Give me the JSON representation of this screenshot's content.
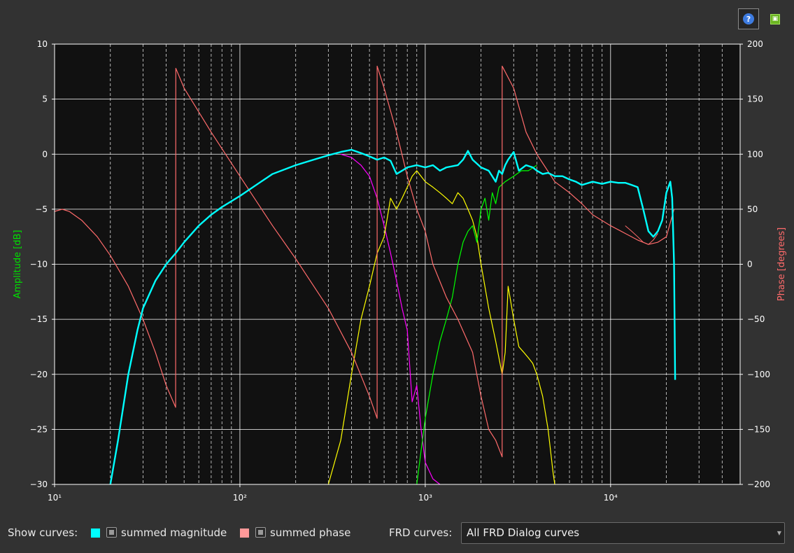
{
  "toolbar": {
    "help_icon": "help-icon",
    "export_icon": "export-icon",
    "help_glyph": "?",
    "export_glyph": "▣"
  },
  "controls": {
    "show_curves_label": "Show curves:",
    "magnitude_label": "summed magnitude",
    "magnitude_color": "#00ffff",
    "phase_label": "summed phase",
    "phase_color": "#ff9999",
    "frd_label": "FRD curves:",
    "frd_selected": "All FRD Dialog curves"
  },
  "chart_data": {
    "type": "line",
    "xscale": "log",
    "xlim": [
      10,
      50000
    ],
    "xticks": [
      10,
      100,
      1000,
      10000
    ],
    "xtick_labels": [
      "10¹",
      "10²",
      "10³",
      "10⁴"
    ],
    "ylabel": "Amplitude [dB]",
    "ylim": [
      -30,
      10
    ],
    "yticks": [
      10,
      5,
      0,
      -5,
      -10,
      -15,
      -20,
      -25,
      -30
    ],
    "ytick_labels": [
      "10",
      "5",
      "0",
      "−5",
      "−10",
      "−15",
      "−20",
      "−25",
      "−30"
    ],
    "y2label": "Phase [degrees]",
    "y2lim": [
      -200,
      200
    ],
    "y2ticks": [
      200,
      150,
      100,
      50,
      0,
      -50,
      -100,
      -150,
      -200
    ],
    "y2tick_labels": [
      "200",
      "150",
      "100",
      "50",
      "0",
      "−50",
      "−100",
      "−150",
      "−200"
    ],
    "grid": true,
    "colors": {
      "background": "#111111",
      "ylabel": "#00e000",
      "y2label": "#ff6b6b"
    },
    "series": [
      {
        "axis": "left",
        "color": "#ff00ff",
        "width": 1.2,
        "x": [
          350,
          400,
          450,
          500,
          550,
          600,
          650,
          700,
          750,
          800,
          850,
          900,
          950,
          1000,
          1100,
          1200
        ],
        "y": [
          0,
          -0.3,
          -1,
          -2,
          -4,
          -6.5,
          -9,
          -11.5,
          -14,
          -16,
          -22.5,
          -21,
          -25,
          -28,
          -29.5,
          -30
        ]
      },
      {
        "axis": "left",
        "color": "#ffff00",
        "width": 1.2,
        "x": [
          300,
          350,
          400,
          450,
          500,
          550,
          600,
          650,
          700,
          750,
          800,
          850,
          900,
          1000,
          1100,
          1200,
          1300,
          1400,
          1500,
          1600,
          1700,
          1800,
          1900,
          2000,
          2200,
          2400,
          2600,
          2700,
          2800,
          2900,
          3000,
          3200,
          3400,
          3600,
          3800,
          4000,
          4300,
          4600,
          4900,
          5000
        ],
        "y": [
          -30,
          -26,
          -20,
          -15,
          -12,
          -9,
          -7.5,
          -4,
          -5,
          -4,
          -3,
          -2,
          -1.5,
          -2.5,
          -3,
          -3.5,
          -4,
          -4.5,
          -3.5,
          -4,
          -5,
          -6,
          -7.5,
          -10,
          -14,
          -17,
          -20,
          -18,
          -12,
          -13.5,
          -15,
          -17.5,
          -18,
          -18.5,
          -19,
          -20,
          -22,
          -25,
          -29,
          -30
        ]
      },
      {
        "axis": "left",
        "color": "#00ff00",
        "width": 1.2,
        "x": [
          900,
          1000,
          1100,
          1200,
          1300,
          1400,
          1500,
          1600,
          1700,
          1800,
          1900,
          2000,
          2100,
          2200,
          2300,
          2400,
          2500,
          2700,
          3000,
          3300,
          3600,
          4000
        ],
        "y": [
          -30,
          -24,
          -20,
          -17,
          -15,
          -13,
          -10,
          -8,
          -7,
          -6.5,
          -8,
          -5,
          -4,
          -6,
          -3.5,
          -4.5,
          -3,
          -2.5,
          -2,
          -1.5,
          -1.5,
          -1
        ]
      },
      {
        "axis": "right",
        "color": "#ff6b6b",
        "width": 1.2,
        "x": [
          10,
          11,
          12,
          14,
          17,
          20,
          25,
          30,
          35,
          40,
          45,
          45.1,
          50,
          70,
          100,
          150,
          200,
          300,
          400,
          500,
          550,
          550.1,
          600,
          700,
          800,
          900,
          1000,
          1100,
          1300,
          1500,
          1800,
          2000,
          2200,
          2400,
          2600,
          2600.1,
          3000,
          3500,
          4000,
          5000,
          6000,
          7000,
          8000,
          10000,
          12000,
          14000,
          16000,
          18000,
          20000,
          22000
        ],
        "y": [
          48,
          50,
          48,
          40,
          25,
          8,
          -20,
          -50,
          -80,
          -110,
          -130,
          178,
          160,
          120,
          80,
          35,
          5,
          -40,
          -80,
          -120,
          -140,
          180,
          160,
          120,
          80,
          50,
          30,
          0,
          -30,
          -50,
          -80,
          -120,
          -150,
          -160,
          -175,
          180,
          160,
          120,
          100,
          75,
          65,
          55,
          45,
          35,
          28,
          22,
          18,
          20,
          25,
          50
        ]
      },
      {
        "axis": "left",
        "color": "#00ffff",
        "width": 2.4,
        "x": [
          20,
          22,
          25,
          28,
          30,
          35,
          40,
          45,
          50,
          60,
          70,
          80,
          100,
          130,
          150,
          200,
          250,
          300,
          350,
          400,
          450,
          500,
          550,
          600,
          650,
          700,
          750,
          800,
          900,
          1000,
          1100,
          1200,
          1300,
          1500,
          1600,
          1700,
          1800,
          2000,
          2200,
          2400,
          2500,
          2600,
          2700,
          2800,
          3000,
          3200,
          3500,
          3800,
          4000,
          4300,
          4600,
          5000,
          5500,
          6000,
          6500,
          7000,
          8000,
          9000,
          10000,
          11000,
          12000,
          13000,
          14000,
          15000,
          16000,
          17000,
          18000,
          19000,
          20000,
          21000,
          21500,
          22000,
          22300
        ],
        "y": [
          -30,
          -26,
          -20,
          -16,
          -14,
          -11.5,
          -10,
          -9,
          -8,
          -6.5,
          -5.5,
          -4.8,
          -3.8,
          -2.5,
          -1.8,
          -1,
          -0.5,
          -0.1,
          0.2,
          0.4,
          0.1,
          -0.2,
          -0.5,
          -0.3,
          -0.6,
          -1.8,
          -1.5,
          -1.2,
          -1,
          -1.2,
          -1,
          -1.5,
          -1.2,
          -1,
          -0.5,
          0.3,
          -0.5,
          -1.2,
          -1.5,
          -2.5,
          -1.5,
          -1.8,
          -1,
          -0.5,
          0.2,
          -1.5,
          -1,
          -1.2,
          -1.5,
          -1.8,
          -1.7,
          -2,
          -2,
          -2.3,
          -2.5,
          -2.8,
          -2.5,
          -2.7,
          -2.5,
          -2.6,
          -2.6,
          -2.8,
          -3,
          -5,
          -7,
          -7.5,
          -7,
          -6,
          -3.5,
          -2.5,
          -4,
          -10,
          -20.5
        ]
      },
      {
        "axis": "left",
        "color": "#ff6b6b",
        "width": 1,
        "x": [
          12000,
          13000,
          14000,
          15000,
          16000,
          17000,
          18000
        ],
        "y": [
          -6.5,
          -7,
          -7.5,
          -8,
          -8.2,
          -7.8,
          -7.2
        ]
      }
    ]
  }
}
